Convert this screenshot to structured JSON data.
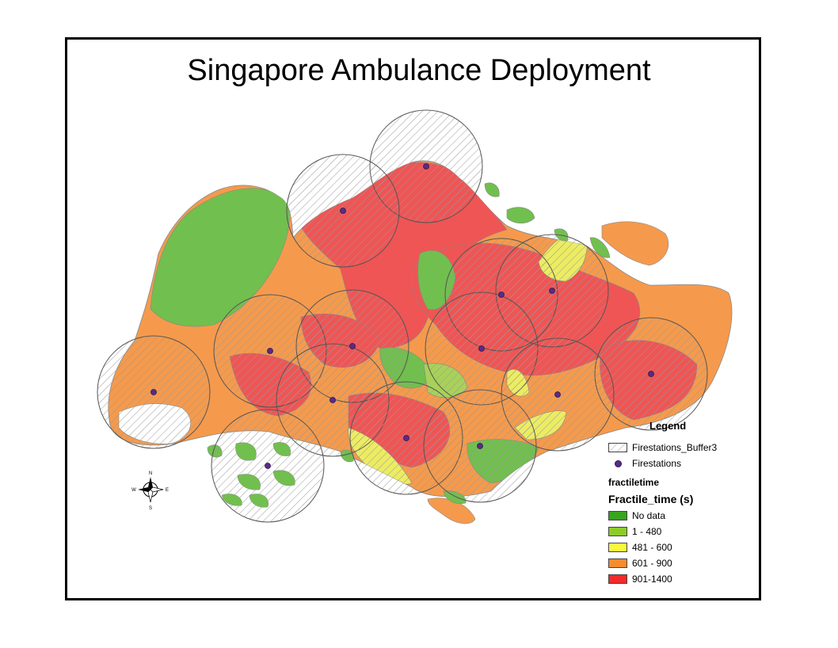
{
  "map": {
    "title": "Singapore Ambulance Deployment",
    "legend": {
      "heading": "Legend",
      "buffer_label": "Firestations_Buffer3",
      "stations_label": "Firestations",
      "field_name": "fractiletime",
      "field_alias": "Fractile_time (s)",
      "classes": [
        {
          "label": "No data",
          "color": "#3aa31f"
        },
        {
          "label": "1 - 480",
          "color": "#8ccc2a"
        },
        {
          "label": "481 - 600",
          "color": "#f8f840"
        },
        {
          "label": "601 - 900",
          "color": "#f58c2e"
        },
        {
          "label": "901-1400",
          "color": "#f22a2a"
        }
      ]
    },
    "north_arrow": {
      "n": "N",
      "s": "S",
      "e": "E",
      "w": "W"
    },
    "colors": {
      "green_region": "#71bf4e",
      "orange_region": "#f59a4c",
      "red_region": "#ef5555",
      "yellow_region": "#ecec63",
      "buffer_fill": "#ececec",
      "station": "#5b2a86"
    }
  }
}
